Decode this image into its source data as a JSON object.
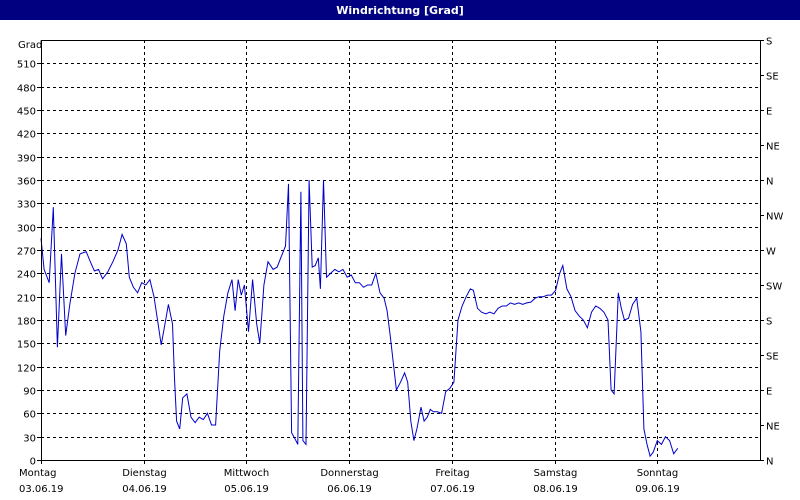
{
  "window": {
    "title": "Windrichtung [Grad]"
  },
  "chart_data": {
    "type": "line",
    "title": "Windrichtung [Grad]",
    "ylabel": "Grad",
    "xlabel": "",
    "ylim": [
      0,
      540
    ],
    "y_ticks": [
      0,
      30,
      60,
      90,
      120,
      150,
      180,
      210,
      240,
      270,
      300,
      330,
      360,
      390,
      420,
      450,
      480,
      510
    ],
    "right_ticks": [
      {
        "value": 0,
        "label": "N"
      },
      {
        "value": 45,
        "label": "NE"
      },
      {
        "value": 90,
        "label": "E"
      },
      {
        "value": 135,
        "label": "SE"
      },
      {
        "value": 180,
        "label": "S"
      },
      {
        "value": 225,
        "label": "SW"
      },
      {
        "value": 270,
        "label": "W"
      },
      {
        "value": 315,
        "label": "NW"
      },
      {
        "value": 360,
        "label": "N"
      },
      {
        "value": 405,
        "label": "NE"
      },
      {
        "value": 450,
        "label": "E"
      },
      {
        "value": 495,
        "label": "SE"
      },
      {
        "value": 540,
        "label": "S"
      }
    ],
    "xlim": [
      0,
      7
    ],
    "x_ticks": [
      {
        "day": "Montag",
        "date": "03.06.19"
      },
      {
        "day": "Dienstag",
        "date": "04.06.19"
      },
      {
        "day": "Mittwoch",
        "date": "05.06.19"
      },
      {
        "day": "Donnerstag",
        "date": "06.06.19"
      },
      {
        "day": "Freitag",
        "date": "07.06.19"
      },
      {
        "day": "Samstag",
        "date": "08.06.19"
      },
      {
        "day": "Sonntag",
        "date": "09.06.19"
      }
    ],
    "grid": true,
    "series": [
      {
        "name": "",
        "color": "#0000cc",
        "points": [
          [
            0.0,
            285
          ],
          [
            0.03,
            245
          ],
          [
            0.08,
            228
          ],
          [
            0.12,
            325
          ],
          [
            0.16,
            145
          ],
          [
            0.2,
            265
          ],
          [
            0.24,
            160
          ],
          [
            0.28,
            200
          ],
          [
            0.33,
            240
          ],
          [
            0.38,
            265
          ],
          [
            0.44,
            268
          ],
          [
            0.48,
            255
          ],
          [
            0.52,
            243
          ],
          [
            0.56,
            245
          ],
          [
            0.6,
            233
          ],
          [
            0.65,
            242
          ],
          [
            0.7,
            255
          ],
          [
            0.75,
            270
          ],
          [
            0.79,
            290
          ],
          [
            0.83,
            278
          ],
          [
            0.86,
            235
          ],
          [
            0.9,
            222
          ],
          [
            0.94,
            215
          ],
          [
            0.98,
            228
          ],
          [
            1.02,
            225
          ],
          [
            1.06,
            232
          ],
          [
            1.1,
            210
          ],
          [
            1.14,
            175
          ],
          [
            1.17,
            148
          ],
          [
            1.2,
            170
          ],
          [
            1.24,
            200
          ],
          [
            1.28,
            175
          ],
          [
            1.3,
            105
          ],
          [
            1.32,
            50
          ],
          [
            1.35,
            40
          ],
          [
            1.38,
            80
          ],
          [
            1.42,
            85
          ],
          [
            1.46,
            55
          ],
          [
            1.5,
            48
          ],
          [
            1.54,
            55
          ],
          [
            1.58,
            52
          ],
          [
            1.62,
            60
          ],
          [
            1.66,
            45
          ],
          [
            1.7,
            45
          ],
          [
            1.74,
            140
          ],
          [
            1.78,
            185
          ],
          [
            1.82,
            215
          ],
          [
            1.86,
            232
          ],
          [
            1.89,
            192
          ],
          [
            1.92,
            232
          ],
          [
            1.95,
            212
          ],
          [
            1.98,
            225
          ],
          [
            2.02,
            165
          ],
          [
            2.06,
            232
          ],
          [
            2.1,
            175
          ],
          [
            2.13,
            150
          ],
          [
            2.17,
            225
          ],
          [
            2.21,
            255
          ],
          [
            2.26,
            245
          ],
          [
            2.3,
            248
          ],
          [
            2.34,
            262
          ],
          [
            2.38,
            275
          ],
          [
            2.41,
            355
          ],
          [
            2.44,
            35
          ],
          [
            2.47,
            28
          ],
          [
            2.5,
            20
          ],
          [
            2.53,
            345
          ],
          [
            2.55,
            25
          ],
          [
            2.58,
            20
          ],
          [
            2.61,
            360
          ],
          [
            2.64,
            248
          ],
          [
            2.67,
            250
          ],
          [
            2.7,
            260
          ],
          [
            2.72,
            220
          ],
          [
            2.75,
            360
          ],
          [
            2.78,
            235
          ],
          [
            2.82,
            240
          ],
          [
            2.86,
            245
          ],
          [
            2.9,
            242
          ],
          [
            2.94,
            245
          ],
          [
            2.98,
            235
          ],
          [
            3.02,
            238
          ],
          [
            3.06,
            228
          ],
          [
            3.1,
            228
          ],
          [
            3.14,
            222
          ],
          [
            3.18,
            225
          ],
          [
            3.22,
            225
          ],
          [
            3.26,
            240
          ],
          [
            3.3,
            215
          ],
          [
            3.34,
            208
          ],
          [
            3.37,
            192
          ],
          [
            3.4,
            160
          ],
          [
            3.43,
            125
          ],
          [
            3.46,
            90
          ],
          [
            3.5,
            100
          ],
          [
            3.54,
            112
          ],
          [
            3.57,
            100
          ],
          [
            3.6,
            50
          ],
          [
            3.63,
            25
          ],
          [
            3.66,
            40
          ],
          [
            3.7,
            68
          ],
          [
            3.73,
            50
          ],
          [
            3.76,
            55
          ],
          [
            3.79,
            65
          ],
          [
            3.82,
            62
          ],
          [
            3.86,
            62
          ],
          [
            3.9,
            60
          ],
          [
            3.94,
            88
          ],
          [
            3.98,
            92
          ],
          [
            4.02,
            100
          ],
          [
            4.06,
            180
          ],
          [
            4.1,
            198
          ],
          [
            4.14,
            210
          ],
          [
            4.18,
            220
          ],
          [
            4.21,
            218
          ],
          [
            4.25,
            195
          ],
          [
            4.29,
            190
          ],
          [
            4.33,
            188
          ],
          [
            4.37,
            190
          ],
          [
            4.41,
            188
          ],
          [
            4.45,
            195
          ],
          [
            4.49,
            198
          ],
          [
            4.53,
            198
          ],
          [
            4.57,
            202
          ],
          [
            4.61,
            200
          ],
          [
            4.65,
            202
          ],
          [
            4.69,
            200
          ],
          [
            4.73,
            202
          ],
          [
            4.77,
            203
          ],
          [
            4.81,
            208
          ],
          [
            4.85,
            210
          ],
          [
            4.89,
            210
          ],
          [
            4.93,
            212
          ],
          [
            4.97,
            212
          ],
          [
            5.01,
            218
          ],
          [
            5.05,
            240
          ],
          [
            5.08,
            250
          ],
          [
            5.12,
            220
          ],
          [
            5.16,
            210
          ],
          [
            5.2,
            192
          ],
          [
            5.24,
            185
          ],
          [
            5.28,
            180
          ],
          [
            5.32,
            170
          ],
          [
            5.36,
            190
          ],
          [
            5.4,
            198
          ],
          [
            5.44,
            195
          ],
          [
            5.48,
            190
          ],
          [
            5.52,
            180
          ],
          [
            5.55,
            90
          ],
          [
            5.58,
            85
          ],
          [
            5.62,
            215
          ],
          [
            5.65,
            195
          ],
          [
            5.68,
            180
          ],
          [
            5.72,
            182
          ],
          [
            5.76,
            200
          ],
          [
            5.8,
            208
          ],
          [
            5.84,
            165
          ],
          [
            5.87,
            40
          ],
          [
            5.9,
            20
          ],
          [
            5.93,
            5
          ],
          [
            5.96,
            10
          ],
          [
            6.0,
            25
          ],
          [
            6.04,
            20
          ],
          [
            6.08,
            30
          ],
          [
            6.12,
            25
          ],
          [
            6.16,
            8
          ],
          [
            6.2,
            15
          ]
        ]
      }
    ]
  }
}
